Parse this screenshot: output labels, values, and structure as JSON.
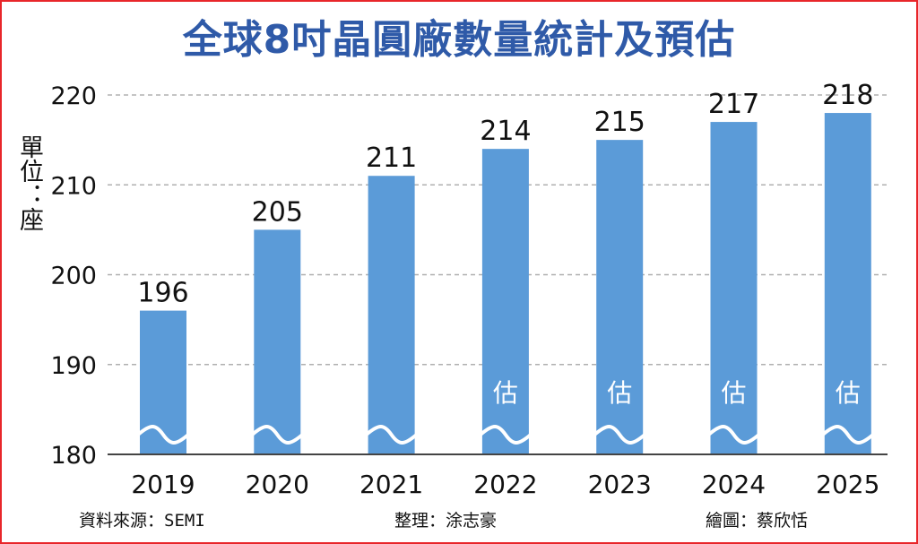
{
  "title": "全球8吋晶圓廠數量統計及預估",
  "unit_label": "單位：座",
  "footer": {
    "source_label": "資料來源：",
    "source_value": "SEMI",
    "editor_label": "整理：",
    "editor_value": "涂志豪",
    "artist_label": "繪圖：",
    "artist_value": "蔡欣恬"
  },
  "chart_data": {
    "type": "bar",
    "title": "全球8吋晶圓廠數量統計及預估",
    "ylabel": "單位：座",
    "xlabel": "",
    "categories": [
      "2019",
      "2020",
      "2021",
      "2022",
      "2023",
      "2024",
      "2025"
    ],
    "values": [
      196,
      205,
      211,
      214,
      215,
      217,
      218
    ],
    "data_labels": [
      "196",
      "205",
      "211",
      "214",
      "215",
      "217",
      "218"
    ],
    "estimate_mark": "估",
    "estimated": [
      false,
      false,
      false,
      true,
      true,
      true,
      true
    ],
    "ylim": [
      180,
      220
    ],
    "yticks": [
      180,
      190,
      200,
      210,
      220
    ],
    "ytick_labels": [
      "180",
      "190",
      "200",
      "210",
      "220"
    ],
    "axis_break": true,
    "grid": true,
    "bar_color": "#5b9bd8",
    "grid_color": "#b0b0b0"
  }
}
